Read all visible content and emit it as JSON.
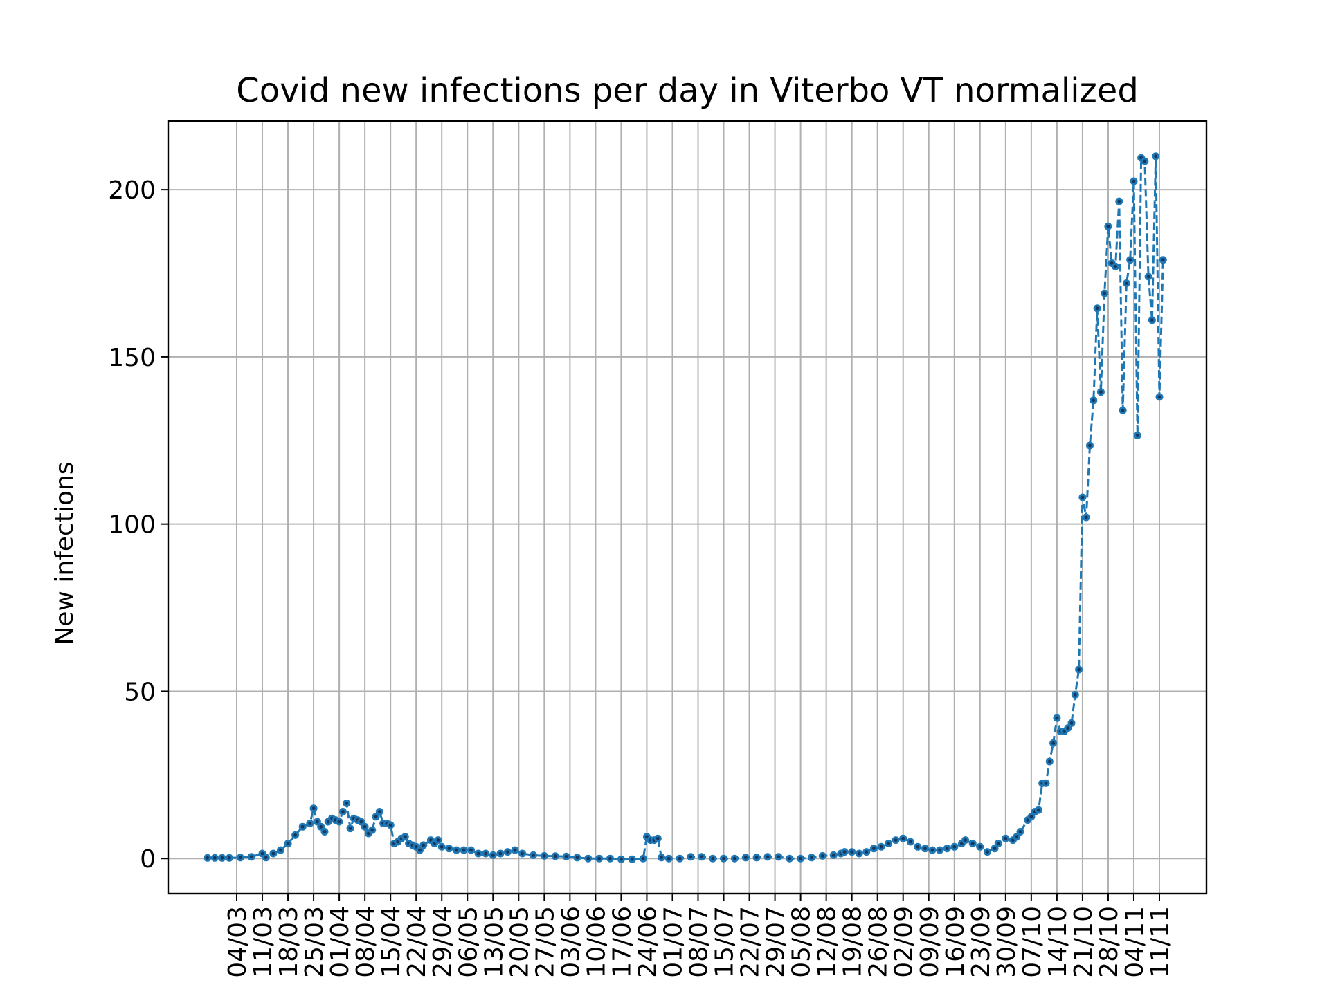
{
  "chart_data": {
    "type": "line",
    "title": "Covid new infections per day in Viterbo VT normalized",
    "xlabel": "",
    "ylabel": "New infections",
    "ylim": [
      -10.5,
      220.5
    ],
    "y_ticks": [
      0,
      50,
      100,
      150,
      200
    ],
    "x_tick_labels": [
      "04/03",
      "11/03",
      "18/03",
      "25/03",
      "01/04",
      "08/04",
      "15/04",
      "22/04",
      "29/04",
      "06/05",
      "13/05",
      "20/05",
      "27/05",
      "03/06",
      "10/06",
      "17/06",
      "24/06",
      "01/07",
      "08/07",
      "15/07",
      "22/07",
      "29/07",
      "05/08",
      "12/08",
      "19/08",
      "26/08",
      "02/09",
      "09/09",
      "16/09",
      "23/09",
      "30/09",
      "07/10",
      "14/10",
      "21/10",
      "28/10",
      "04/11",
      "11/11"
    ],
    "grid": true,
    "line_style": "dashed",
    "marker": "dot",
    "colors": {
      "line": "#1f77b4",
      "marker_center": "#17365c",
      "grid": "#b0b0b0",
      "frame": "#000000"
    },
    "series": [
      {
        "points": [
          [
            "25/02",
            0.2
          ],
          [
            "27/02",
            0.2
          ],
          [
            "29/02",
            0.2
          ],
          [
            "02/03",
            0.2
          ],
          [
            "05/03",
            0.3
          ],
          [
            "08/03",
            0.5
          ],
          [
            "11/03",
            1.5
          ],
          [
            "12/03",
            0.3
          ],
          [
            "14/03",
            1.5
          ],
          [
            "16/03",
            2.5
          ],
          [
            "18/03",
            4.5
          ],
          [
            "20/03",
            7.0
          ],
          [
            "22/03",
            9.5
          ],
          [
            "24/03",
            10.5
          ],
          [
            "25/03",
            15.0
          ],
          [
            "26/03",
            11.0
          ],
          [
            "27/03",
            9.5
          ],
          [
            "28/03",
            8.0
          ],
          [
            "29/03",
            11.0
          ],
          [
            "30/03",
            12.0
          ],
          [
            "31/03",
            11.5
          ],
          [
            "01/04",
            11.0
          ],
          [
            "02/04",
            14.0
          ],
          [
            "03/04",
            16.5
          ],
          [
            "04/04",
            9.0
          ],
          [
            "05/04",
            12.0
          ],
          [
            "06/04",
            11.5
          ],
          [
            "07/04",
            11.0
          ],
          [
            "08/04",
            9.5
          ],
          [
            "09/04",
            7.5
          ],
          [
            "10/04",
            8.5
          ],
          [
            "11/04",
            12.5
          ],
          [
            "12/04",
            14.0
          ],
          [
            "13/04",
            10.5
          ],
          [
            "14/04",
            10.5
          ],
          [
            "15/04",
            10.0
          ],
          [
            "16/04",
            4.5
          ],
          [
            "17/04",
            5.0
          ],
          [
            "18/04",
            6.0
          ],
          [
            "19/04",
            6.5
          ],
          [
            "20/04",
            4.5
          ],
          [
            "21/04",
            4.0
          ],
          [
            "22/04",
            3.5
          ],
          [
            "23/04",
            2.5
          ],
          [
            "24/04",
            4.0
          ],
          [
            "26/04",
            5.5
          ],
          [
            "27/04",
            4.5
          ],
          [
            "28/04",
            5.5
          ],
          [
            "29/04",
            3.5
          ],
          [
            "01/05",
            3.0
          ],
          [
            "03/05",
            2.5
          ],
          [
            "05/05",
            2.5
          ],
          [
            "07/05",
            2.5
          ],
          [
            "09/05",
            1.5
          ],
          [
            "11/05",
            1.5
          ],
          [
            "13/05",
            1.0
          ],
          [
            "15/05",
            1.5
          ],
          [
            "17/05",
            2.0
          ],
          [
            "19/05",
            2.5
          ],
          [
            "21/05",
            1.5
          ],
          [
            "24/05",
            1.0
          ],
          [
            "27/05",
            0.8
          ],
          [
            "30/05",
            0.7
          ],
          [
            "02/06",
            0.6
          ],
          [
            "05/06",
            0.3
          ],
          [
            "08/06",
            0.0
          ],
          [
            "11/06",
            0.0
          ],
          [
            "14/06",
            0.0
          ],
          [
            "17/06",
            -0.2
          ],
          [
            "20/06",
            -0.2
          ],
          [
            "23/06",
            0.0
          ],
          [
            "24/06",
            6.5
          ],
          [
            "25/06",
            5.5
          ],
          [
            "26/06",
            5.5
          ],
          [
            "27/06",
            6.0
          ],
          [
            "28/06",
            0.3
          ],
          [
            "30/06",
            0.0
          ],
          [
            "03/07",
            0.0
          ],
          [
            "06/07",
            0.5
          ],
          [
            "09/07",
            0.5
          ],
          [
            "12/07",
            0.0
          ],
          [
            "15/07",
            0.0
          ],
          [
            "18/07",
            0.0
          ],
          [
            "21/07",
            0.3
          ],
          [
            "24/07",
            0.3
          ],
          [
            "27/07",
            0.5
          ],
          [
            "30/07",
            0.5
          ],
          [
            "02/08",
            0.0
          ],
          [
            "05/08",
            0.0
          ],
          [
            "08/08",
            0.3
          ],
          [
            "11/08",
            0.8
          ],
          [
            "14/08",
            1.0
          ],
          [
            "16/08",
            1.5
          ],
          [
            "17/08",
            2.0
          ],
          [
            "19/08",
            2.0
          ],
          [
            "21/08",
            1.5
          ],
          [
            "23/08",
            2.0
          ],
          [
            "25/08",
            3.0
          ],
          [
            "27/08",
            3.5
          ],
          [
            "29/08",
            4.5
          ],
          [
            "31/08",
            5.5
          ],
          [
            "02/09",
            6.0
          ],
          [
            "04/09",
            5.0
          ],
          [
            "06/09",
            3.5
          ],
          [
            "08/09",
            3.0
          ],
          [
            "10/09",
            2.5
          ],
          [
            "12/09",
            2.5
          ],
          [
            "14/09",
            3.0
          ],
          [
            "16/09",
            3.5
          ],
          [
            "18/09",
            4.5
          ],
          [
            "19/09",
            5.5
          ],
          [
            "21/09",
            4.5
          ],
          [
            "23/09",
            3.5
          ],
          [
            "25/09",
            2.0
          ],
          [
            "27/09",
            3.0
          ],
          [
            "28/09",
            4.5
          ],
          [
            "30/09",
            6.0
          ],
          [
            "02/10",
            5.5
          ],
          [
            "03/10",
            6.5
          ],
          [
            "04/10",
            8.0
          ],
          [
            "06/10",
            11.5
          ],
          [
            "07/10",
            12.5
          ],
          [
            "08/10",
            14.0
          ],
          [
            "09/10",
            14.5
          ],
          [
            "10/10",
            22.5
          ],
          [
            "11/10",
            22.5
          ],
          [
            "12/10",
            29.0
          ],
          [
            "13/10",
            34.5
          ],
          [
            "14/10",
            42.0
          ],
          [
            "15/10",
            38.0
          ],
          [
            "16/10",
            38.0
          ],
          [
            "17/10",
            39.0
          ],
          [
            "18/10",
            40.5
          ],
          [
            "19/10",
            49.0
          ],
          [
            "20/10",
            56.5
          ],
          [
            "21/10",
            108.0
          ],
          [
            "22/10",
            102.0
          ],
          [
            "23/10",
            123.5
          ],
          [
            "24/10",
            137.0
          ],
          [
            "25/10",
            164.5
          ],
          [
            "26/10",
            139.5
          ],
          [
            "27/10",
            169.0
          ],
          [
            "28/10",
            189.0
          ],
          [
            "29/10",
            178.0
          ],
          [
            "30/10",
            177.0
          ],
          [
            "31/10",
            196.5
          ],
          [
            "01/11",
            134.0
          ],
          [
            "02/11",
            172.0
          ],
          [
            "03/11",
            179.0
          ],
          [
            "04/11",
            202.5
          ],
          [
            "05/11",
            126.5
          ],
          [
            "06/11",
            209.5
          ],
          [
            "07/11",
            208.5
          ],
          [
            "08/11",
            174.0
          ],
          [
            "09/11",
            161.0
          ],
          [
            "10/11",
            210.0
          ],
          [
            "11/11",
            138.0
          ],
          [
            "12/11",
            179.0
          ]
        ]
      }
    ]
  }
}
